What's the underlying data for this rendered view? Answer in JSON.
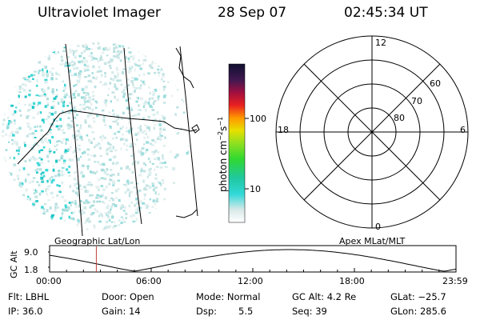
{
  "header": {
    "instrument": "Ultraviolet Imager",
    "date": "28 Sep 07",
    "time": "02:45:34 UT"
  },
  "colorbar": {
    "label": "photon cm",
    "label_exp1": "−2",
    "label_s": "s",
    "label_exp2": "−1",
    "ticks": [
      "100",
      "10"
    ]
  },
  "polar": {
    "mlt_labels": {
      "top": "12",
      "left": "18",
      "right": "6",
      "bottom": "0"
    },
    "lat_labels": [
      "60",
      "70",
      "80"
    ]
  },
  "timeline": {
    "y_axis_label": "GC Alt",
    "y_max": "9.0",
    "y_min": "1.8",
    "left_title": "Geographic Lat/Lon",
    "right_title": "Apex MLat/MLT",
    "x_ticks": [
      "00:00",
      "06:00",
      "12:00",
      "18:00",
      "23:59"
    ],
    "marker_time_hours": 2.76
  },
  "info": {
    "flt": "Flt: LBHL",
    "ip": "IP: 36.0",
    "door": "Door: Open",
    "gain": "Gain: 14",
    "mode": "Mode: Normal",
    "dsp_label": "Dsp:",
    "dsp_value": "5.5",
    "gc_alt": "GC Alt: 4.2 Re",
    "seq": "Seq: 39",
    "glat": "GLat: −25.7",
    "glon": "GLon: 285.6"
  }
}
